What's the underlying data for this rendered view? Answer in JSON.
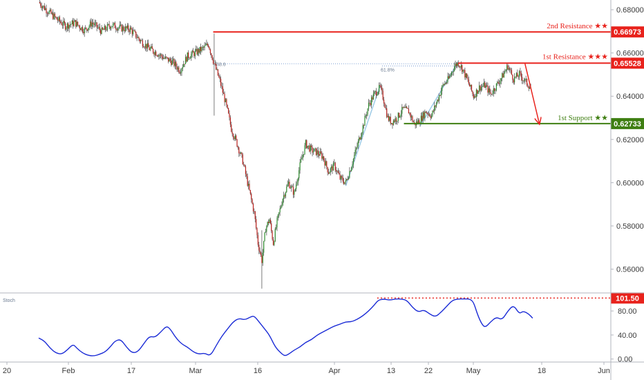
{
  "chart_data": [
    {
      "type": "candlestick",
      "x_tick_labels": [
        "20",
        "Feb",
        "17",
        "Mar",
        "16",
        "Apr",
        "13",
        "22",
        "May",
        "18",
        "Jun"
      ],
      "y_tick_labels": [
        "0.68000",
        "0.66000",
        "0.64000",
        "0.62000",
        "0.60000",
        "0.58000",
        "0.56000"
      ],
      "y_ticks": [
        0.68,
        0.66,
        0.64,
        0.62,
        0.6,
        0.58,
        0.56
      ],
      "ylim": [
        0.549,
        0.6845
      ],
      "price_path": [
        [
          0,
          0.6835
        ],
        [
          8,
          0.68
        ],
        [
          18,
          0.676
        ],
        [
          28,
          0.6725
        ],
        [
          38,
          0.674
        ],
        [
          48,
          0.6705
        ],
        [
          56,
          0.674
        ],
        [
          66,
          0.67
        ],
        [
          76,
          0.673
        ],
        [
          86,
          0.6715
        ],
        [
          96,
          0.671
        ],
        [
          106,
          0.666
        ],
        [
          116,
          0.662
        ],
        [
          124,
          0.66
        ],
        [
          132,
          0.6575
        ],
        [
          140,
          0.656
        ],
        [
          148,
          0.652
        ],
        [
          156,
          0.6585
        ],
        [
          164,
          0.66
        ],
        [
          172,
          0.662
        ],
        [
          178,
          0.664
        ],
        [
          184,
          0.655
        ],
        [
          190,
          0.647
        ],
        [
          196,
          0.637
        ],
        [
          202,
          0.625
        ],
        [
          208,
          0.618
        ],
        [
          214,
          0.61
        ],
        [
          220,
          0.598
        ],
        [
          226,
          0.586
        ],
        [
          230,
          0.572
        ],
        [
          234,
          0.564
        ],
        [
          238,
          0.579
        ],
        [
          242,
          0.583
        ],
        [
          246,
          0.572
        ],
        [
          250,
          0.582
        ],
        [
          256,
          0.593
        ],
        [
          262,
          0.6
        ],
        [
          268,
          0.595
        ],
        [
          274,
          0.608
        ],
        [
          280,
          0.618
        ],
        [
          286,
          0.615
        ],
        [
          292,
          0.614
        ],
        [
          298,
          0.612
        ],
        [
          304,
          0.605
        ],
        [
          310,
          0.608
        ],
        [
          316,
          0.602
        ],
        [
          322,
          0.6
        ],
        [
          328,
          0.608
        ],
        [
          334,
          0.617
        ],
        [
          340,
          0.626
        ],
        [
          346,
          0.636
        ],
        [
          352,
          0.641
        ],
        [
          358,
          0.644
        ],
        [
          362,
          0.638
        ],
        [
          366,
          0.63
        ],
        [
          370,
          0.628
        ],
        [
          376,
          0.63
        ],
        [
          382,
          0.634
        ],
        [
          388,
          0.633
        ],
        [
          394,
          0.627
        ],
        [
          400,
          0.629
        ],
        [
          406,
          0.633
        ],
        [
          412,
          0.631
        ],
        [
          418,
          0.638
        ],
        [
          424,
          0.645
        ],
        [
          430,
          0.648
        ],
        [
          436,
          0.654
        ],
        [
          440,
          0.6555
        ],
        [
          444,
          0.653
        ],
        [
          450,
          0.647
        ],
        [
          456,
          0.64
        ],
        [
          462,
          0.644
        ],
        [
          468,
          0.645
        ],
        [
          474,
          0.641
        ],
        [
          480,
          0.645
        ],
        [
          486,
          0.649
        ],
        [
          492,
          0.654
        ],
        [
          498,
          0.648
        ],
        [
          504,
          0.65
        ],
        [
          510,
          0.647
        ],
        [
          516,
          0.644
        ]
      ],
      "price_wicks": [
        {
          "i": 184,
          "low": 0.631,
          "high": 0.669
        },
        {
          "i": 234,
          "low": 0.551,
          "high": 0.578
        }
      ],
      "levels": [
        {
          "label": "2nd Resistance ★★",
          "value": 0.66973,
          "tag": "0.66973",
          "color": "#e8221c",
          "from": 183
        },
        {
          "label": "1st Resistance ★★★",
          "value": 0.65528,
          "tag": "0.65528",
          "color": "#e8221c",
          "from": 440
        },
        {
          "label": "1st Support ★★",
          "value": 0.62733,
          "tag": "0.62733",
          "color": "#3f7f12",
          "from": 383
        }
      ],
      "fib_labels": [
        "88.6",
        "61.8%"
      ],
      "arrow": {
        "from": [
          510,
          0.655
        ],
        "to": [
          525,
          0.6273
        ],
        "color": "#e8221c"
      }
    },
    {
      "type": "line",
      "name": "Stoch",
      "y_tick_labels": [
        "80.00",
        "40.00",
        "0.00"
      ],
      "y_ticks": [
        80,
        40,
        0
      ],
      "ylim": [
        -5,
        110
      ],
      "threshold": {
        "value": 101.5,
        "tag": "101.50",
        "color": "#e8221c",
        "from": 355
      },
      "values": [
        [
          0,
          35
        ],
        [
          6,
          30
        ],
        [
          12,
          18
        ],
        [
          18,
          10
        ],
        [
          24,
          8
        ],
        [
          30,
          15
        ],
        [
          36,
          25
        ],
        [
          40,
          18
        ],
        [
          46,
          10
        ],
        [
          52,
          6
        ],
        [
          58,
          5
        ],
        [
          64,
          8
        ],
        [
          70,
          12
        ],
        [
          76,
          22
        ],
        [
          80,
          30
        ],
        [
          86,
          33
        ],
        [
          92,
          20
        ],
        [
          98,
          10
        ],
        [
          104,
          12
        ],
        [
          110,
          25
        ],
        [
          116,
          38
        ],
        [
          122,
          36
        ],
        [
          128,
          45
        ],
        [
          134,
          55
        ],
        [
          138,
          50
        ],
        [
          144,
          35
        ],
        [
          150,
          25
        ],
        [
          156,
          20
        ],
        [
          162,
          12
        ],
        [
          168,
          8
        ],
        [
          174,
          10
        ],
        [
          180,
          5
        ],
        [
          186,
          22
        ],
        [
          192,
          38
        ],
        [
          198,
          50
        ],
        [
          204,
          62
        ],
        [
          210,
          68
        ],
        [
          216,
          65
        ],
        [
          222,
          70
        ],
        [
          226,
          72
        ],
        [
          232,
          60
        ],
        [
          236,
          52
        ],
        [
          242,
          40
        ],
        [
          248,
          20
        ],
        [
          254,
          10
        ],
        [
          258,
          5
        ],
        [
          262,
          8
        ],
        [
          268,
          15
        ],
        [
          274,
          20
        ],
        [
          280,
          28
        ],
        [
          286,
          32
        ],
        [
          292,
          40
        ],
        [
          298,
          45
        ],
        [
          304,
          50
        ],
        [
          310,
          55
        ],
        [
          316,
          58
        ],
        [
          322,
          62
        ],
        [
          328,
          62
        ],
        [
          334,
          66
        ],
        [
          340,
          72
        ],
        [
          346,
          80
        ],
        [
          352,
          90
        ],
        [
          356,
          98
        ],
        [
          362,
          100
        ],
        [
          368,
          98
        ],
        [
          374,
          100
        ],
        [
          380,
          100
        ],
        [
          386,
          98
        ],
        [
          392,
          86
        ],
        [
          398,
          78
        ],
        [
          404,
          82
        ],
        [
          410,
          75
        ],
        [
          416,
          70
        ],
        [
          422,
          78
        ],
        [
          428,
          88
        ],
        [
          434,
          98
        ],
        [
          440,
          100
        ],
        [
          446,
          100
        ],
        [
          452,
          100
        ],
        [
          456,
          95
        ],
        [
          460,
          75
        ],
        [
          464,
          60
        ],
        [
          468,
          52
        ],
        [
          474,
          62
        ],
        [
          480,
          70
        ],
        [
          486,
          65
        ],
        [
          492,
          80
        ],
        [
          498,
          90
        ],
        [
          504,
          75
        ],
        [
          508,
          80
        ],
        [
          514,
          75
        ],
        [
          518,
          68
        ]
      ]
    }
  ]
}
